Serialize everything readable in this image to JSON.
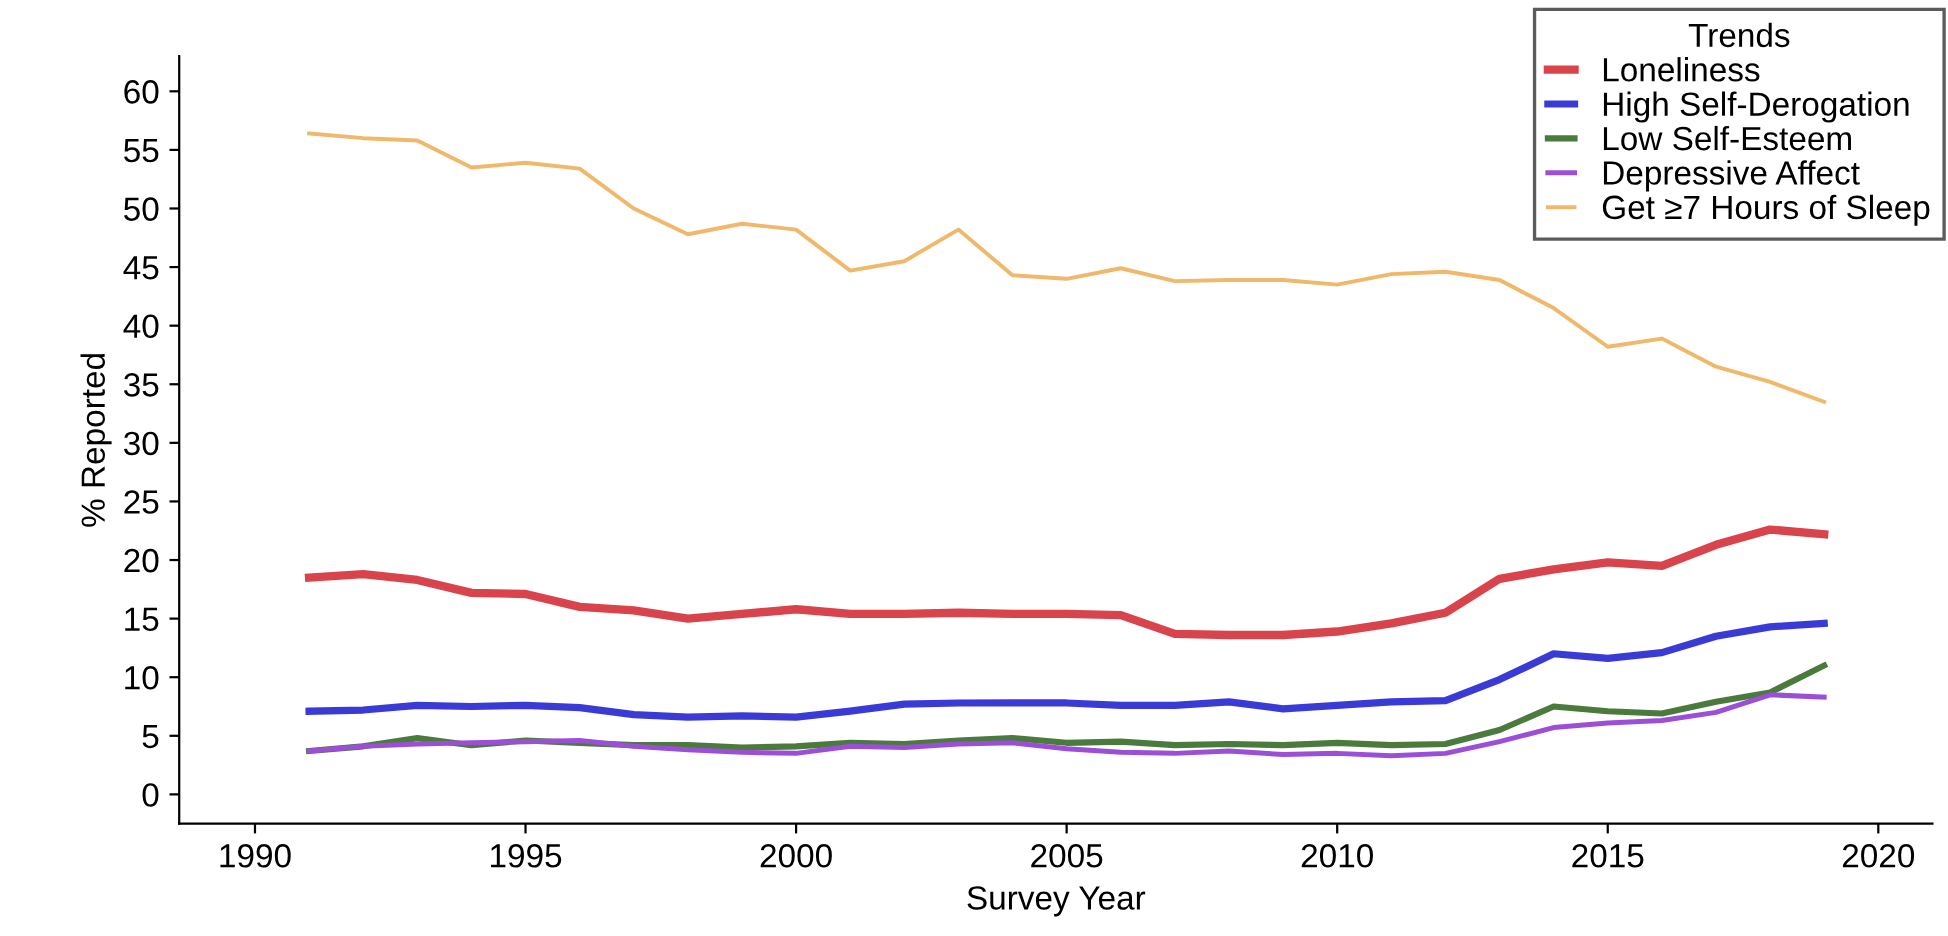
{
  "chart_data": {
    "type": "line",
    "xlabel": "Survey Year",
    "ylabel": "% Reported",
    "legend_title": "Trends",
    "legend": "top right",
    "grid": false,
    "marker": "none",
    "line_style": "solid",
    "x": [
      1991,
      1992,
      1993,
      1994,
      1995,
      1996,
      1997,
      1998,
      1999,
      2000,
      2001,
      2002,
      2003,
      2004,
      2005,
      2006,
      2007,
      2008,
      2009,
      2010,
      2011,
      2012,
      2013,
      2014,
      2015,
      2016,
      2017,
      2018,
      2019
    ],
    "xlim": [
      1988.6,
      2021
    ],
    "xticks": [
      1990,
      1995,
      2000,
      2005,
      2010,
      2015,
      2020
    ],
    "ylim": [
      -2.5,
      63
    ],
    "yticks": [
      0,
      5,
      10,
      15,
      20,
      25,
      30,
      35,
      40,
      45,
      50,
      55,
      60
    ],
    "series": [
      {
        "name": "Loneliness",
        "color": "#d9434b",
        "values": [
          18.5,
          18.8,
          18.3,
          17.2,
          17.1,
          16.0,
          15.7,
          15.0,
          15.4,
          15.8,
          15.4,
          15.4,
          15.5,
          15.4,
          15.4,
          15.3,
          13.7,
          13.6,
          13.6,
          13.9,
          14.6,
          15.5,
          18.4,
          19.2,
          19.8,
          19.5,
          21.3,
          22.6,
          22.2
        ]
      },
      {
        "name": "High Self-Derogation",
        "color": "#3a3ad6",
        "values": [
          7.1,
          7.2,
          7.6,
          7.5,
          7.6,
          7.4,
          6.8,
          6.6,
          6.7,
          6.6,
          7.1,
          7.7,
          7.8,
          7.8,
          7.8,
          7.6,
          7.6,
          7.9,
          7.3,
          7.6,
          7.9,
          8.0,
          9.8,
          12.0,
          11.6,
          12.1,
          13.5,
          14.3,
          14.6
        ]
      },
      {
        "name": "Low Self-Esteem",
        "color": "#4a7a3c",
        "values": [
          3.7,
          4.1,
          4.8,
          4.2,
          4.6,
          4.4,
          4.2,
          4.2,
          4.0,
          4.1,
          4.4,
          4.3,
          4.6,
          4.8,
          4.4,
          4.5,
          4.2,
          4.3,
          4.2,
          4.4,
          4.2,
          4.3,
          5.5,
          7.5,
          7.1,
          6.9,
          7.9,
          8.7,
          11.0
        ]
      },
      {
        "name": "Depressive Affect",
        "color": "#9b4fd6",
        "values": [
          3.7,
          4.1,
          4.3,
          4.4,
          4.5,
          4.6,
          4.1,
          3.8,
          3.6,
          3.5,
          4.1,
          4.0,
          4.3,
          4.4,
          3.9,
          3.6,
          3.5,
          3.7,
          3.4,
          3.5,
          3.3,
          3.5,
          4.5,
          5.7,
          6.1,
          6.3,
          7.0,
          8.5,
          8.3
        ]
      },
      {
        "name": "Get ≥7 Hours of Sleep",
        "color": "#f0b86a",
        "values": [
          56.4,
          56.0,
          55.8,
          53.5,
          53.9,
          53.4,
          50.0,
          47.8,
          48.7,
          48.2,
          44.7,
          45.5,
          48.2,
          44.3,
          44.0,
          44.9,
          43.8,
          43.9,
          43.9,
          43.5,
          44.4,
          44.6,
          43.9,
          41.5,
          38.2,
          38.9,
          36.5,
          35.2,
          33.5
        ]
      }
    ]
  }
}
